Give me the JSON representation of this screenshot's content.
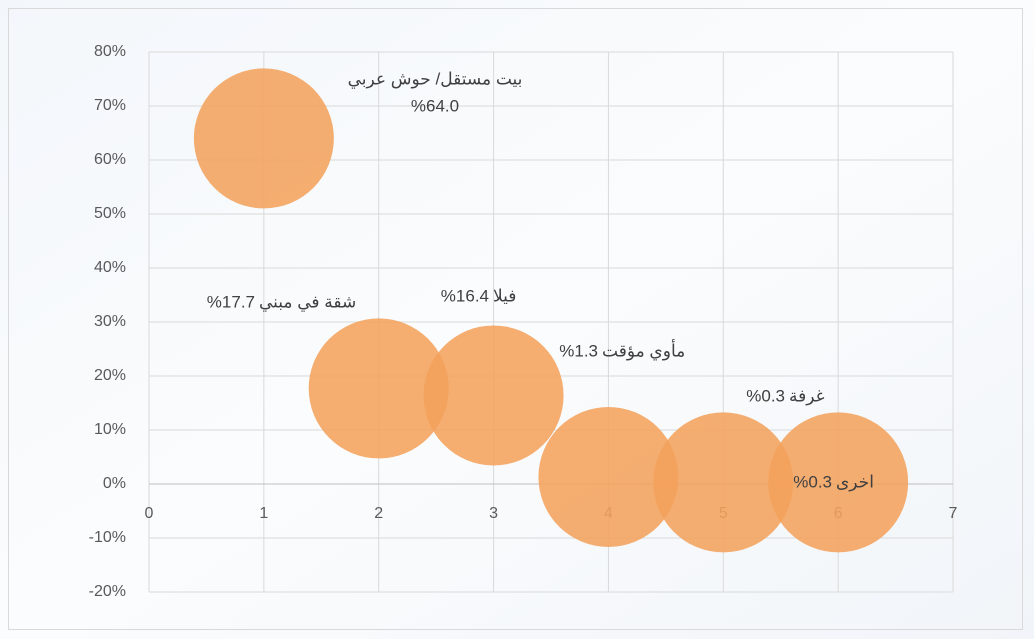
{
  "chart_data": {
    "type": "bubble",
    "labels": [
      "بيت مستقل/ حوش عربي",
      "شقة في مبني",
      "فيلا",
      "مأوي مؤقت",
      "غرفة",
      "اخرى"
    ],
    "x": [
      1,
      2,
      3,
      4,
      5,
      6
    ],
    "values": [
      64.0,
      17.7,
      16.4,
      1.3,
      0.3,
      0.3
    ],
    "value_labels": [
      "%64.0",
      "%17.7",
      "%16.4",
      "%1.3",
      "%0.3",
      "%0.3"
    ],
    "color": "#f4a25c",
    "xlim": [
      0,
      7
    ],
    "xticks": [
      0,
      1,
      2,
      3,
      4,
      5,
      6,
      7
    ],
    "ylim": [
      -20,
      80
    ],
    "yticks": [
      {
        "value": -20,
        "label": "-20%"
      },
      {
        "value": -10,
        "label": "-10%"
      },
      {
        "value": 0,
        "label": "0%"
      },
      {
        "value": 10,
        "label": "10%"
      },
      {
        "value": 20,
        "label": "20%"
      },
      {
        "value": 30,
        "label": "30%"
      },
      {
        "value": 40,
        "label": "40%"
      },
      {
        "value": 50,
        "label": "50%"
      },
      {
        "value": 60,
        "label": "60%"
      },
      {
        "value": 70,
        "label": "70%"
      },
      {
        "value": 80,
        "label": "80%"
      }
    ],
    "grid": true
  }
}
